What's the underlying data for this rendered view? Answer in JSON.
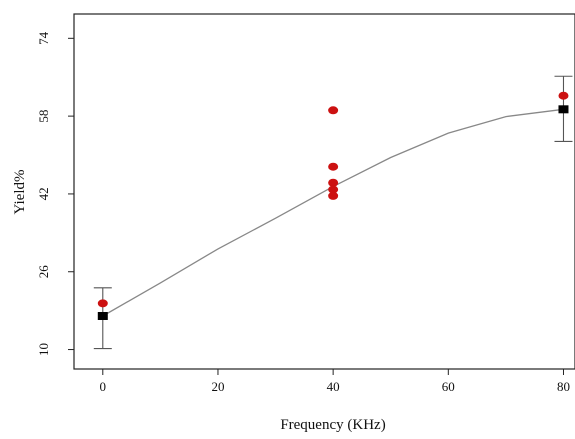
{
  "chart_data": {
    "type": "scatter",
    "title": "",
    "xlabel": "Frequency (KHz)",
    "ylabel": "Yield%",
    "xlim": [
      -5,
      82
    ],
    "ylim": [
      6,
      79
    ],
    "x_ticks": [
      0,
      20,
      40,
      60,
      80
    ],
    "y_ticks": [
      10,
      26,
      42,
      58,
      74
    ],
    "x_tick_labels": [
      "0",
      "20",
      "40",
      "60",
      "80"
    ],
    "y_tick_labels": [
      "10",
      "26",
      "42",
      "58",
      "74"
    ],
    "grid": false,
    "colors": {
      "observed": "#cc1111",
      "mean": "#000000",
      "fit": "#888888",
      "errorbar": "#555555"
    },
    "series": [
      {
        "kind": "observed",
        "points": [
          {
            "x": 0,
            "y": 19.5
          },
          {
            "x": 40,
            "y": 59.2
          },
          {
            "x": 40,
            "y": 47.6
          },
          {
            "x": 40,
            "y": 44.3
          },
          {
            "x": 40,
            "y": 42.9
          },
          {
            "x": 40,
            "y": 41.6
          },
          {
            "x": 80,
            "y": 62.2
          }
        ]
      },
      {
        "kind": "mean",
        "points": [
          {
            "x": 0,
            "y": 16.9,
            "err_low": 10.2,
            "err_high": 22.7
          },
          {
            "x": 80,
            "y": 59.4,
            "err_low": 52.8,
            "err_high": 66.2
          }
        ]
      }
    ],
    "fit_curve": [
      {
        "x": 0,
        "y": 16.9
      },
      {
        "x": 10,
        "y": 23.7
      },
      {
        "x": 20,
        "y": 30.7
      },
      {
        "x": 30,
        "y": 37.0
      },
      {
        "x": 40,
        "y": 43.5
      },
      {
        "x": 50,
        "y": 49.5
      },
      {
        "x": 60,
        "y": 54.5
      },
      {
        "x": 70,
        "y": 57.9
      },
      {
        "x": 80,
        "y": 59.4
      }
    ]
  }
}
